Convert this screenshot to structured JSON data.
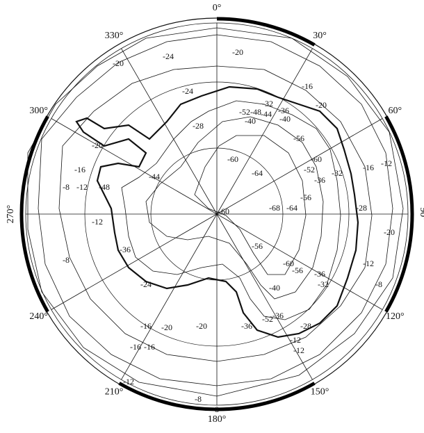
{
  "longitude_labels": [
    "0°",
    "30°",
    "60°",
    "90°",
    "120°",
    "150°",
    "180°",
    "210°",
    "240°",
    "270°",
    "300°",
    "330°"
  ],
  "contour_labels": [
    "-20",
    "-24",
    "-20",
    "-16",
    "-20",
    "-12",
    "-16",
    "-24",
    "-28",
    "-32",
    "-36",
    "-52",
    "-48",
    "-44",
    "-40",
    "-56",
    "-60",
    "-64",
    "-60",
    "-56",
    "-52",
    "-36",
    "-32",
    "-28",
    "-20",
    "-16",
    "-12",
    "-8",
    "-60",
    "-56",
    "-52",
    "-36",
    "-20",
    "-16",
    "-12",
    "-8",
    "-24",
    "-20",
    "-16",
    "-12",
    "-8",
    "-20",
    "-12",
    "-8",
    "-32",
    "-36",
    "-40",
    "-12",
    "-28",
    "-36",
    "-40",
    "-44",
    "-8",
    "-16",
    "-12",
    "-36",
    "-60",
    "-64",
    "-68",
    "-56",
    "-48"
  ]
}
